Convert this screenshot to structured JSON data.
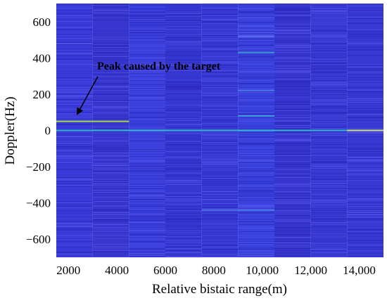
{
  "chart_data": {
    "type": "heatmap",
    "title": "",
    "xlabel": "Relative bistaic range(m)",
    "ylabel": "Doppler(Hz)",
    "xlim": [
      1500,
      15000
    ],
    "ylim": [
      -700,
      700
    ],
    "x_ticks": [
      2000,
      4000,
      6000,
      8000,
      10000,
      12000,
      14000
    ],
    "x_tick_labels": [
      "2000",
      "4000",
      "6000",
      "8000",
      "10,000",
      "12,000",
      "14,000"
    ],
    "y_ticks": [
      -600,
      -400,
      -200,
      0,
      200,
      400,
      600
    ],
    "y_tick_labels": [
      "−600",
      "−400",
      "−200",
      "0",
      "200",
      "400",
      "600"
    ],
    "range_segments": [
      {
        "x_start": 1500,
        "x_end": 3000,
        "background": "#3a3ad8"
      },
      {
        "x_start": 3000,
        "x_end": 4500,
        "background": "#3737cf"
      },
      {
        "x_start": 4500,
        "x_end": 6000,
        "background": "#3b3fdc"
      },
      {
        "x_start": 6000,
        "x_end": 7500,
        "background": "#3636d0"
      },
      {
        "x_start": 7500,
        "x_end": 9000,
        "background": "#3939d6"
      },
      {
        "x_start": 9000,
        "x_end": 10500,
        "background": "#3a42de"
      },
      {
        "x_start": 10500,
        "x_end": 12000,
        "background": "#3636cf"
      },
      {
        "x_start": 12000,
        "x_end": 13500,
        "background": "#3939d4"
      },
      {
        "x_start": 13500,
        "x_end": 15000,
        "background": "#3838d2"
      }
    ],
    "highlights": [
      {
        "doppler": 50,
        "x_start": 1500,
        "x_end": 4500,
        "color": "#a8d848"
      },
      {
        "doppler": 0,
        "x_start": 1500,
        "x_end": 15000,
        "color": "#30b8c8"
      },
      {
        "doppler": 0,
        "x_start": 13500,
        "x_end": 15000,
        "color": "#c8e070"
      },
      {
        "doppler": 80,
        "x_start": 9000,
        "x_end": 10500,
        "color": "#40a0d8"
      },
      {
        "doppler": 220,
        "x_start": 9000,
        "x_end": 10500,
        "color": "#4a7ae0"
      },
      {
        "doppler": 430,
        "x_start": 9000,
        "x_end": 10500,
        "color": "#3a9ad0"
      },
      {
        "doppler": -440,
        "x_start": 9000,
        "x_end": 10500,
        "color": "#4a7ae0"
      },
      {
        "doppler": -440,
        "x_start": 7500,
        "x_end": 9000,
        "color": "#4a6ee0"
      },
      {
        "doppler": 520,
        "x_start": 9000,
        "x_end": 10500,
        "color": "#5a70e8"
      }
    ],
    "annotation": {
      "text": "Peak caused by the target",
      "arrow_to": {
        "x": 2000,
        "y": 50
      }
    },
    "colors": {
      "base": "#3a3ad6",
      "light_stripe": "#5a5af0",
      "dark_stripe": "#2626b8"
    }
  }
}
